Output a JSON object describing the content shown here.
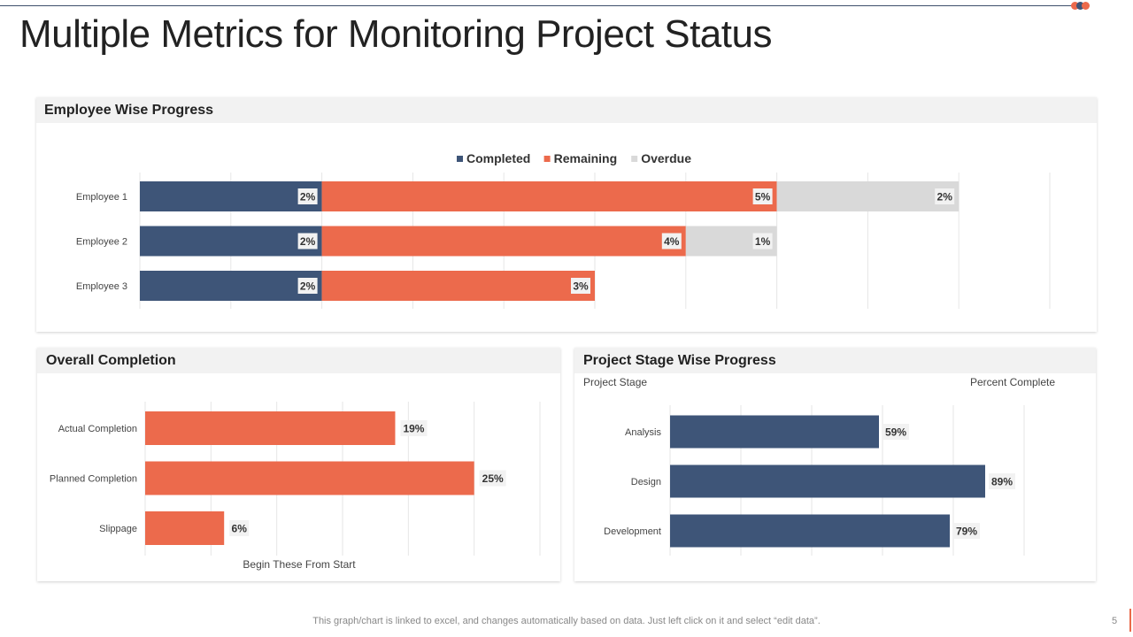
{
  "page": {
    "title": "Multiple Metrics for Monitoring Project Status",
    "footer": "This graph/chart is linked to excel,  and changes automatically based on data. Just left click on it and select “edit data”.",
    "page_number": "5"
  },
  "colors": {
    "navy": "#3e5578",
    "orange": "#ec6a4c",
    "gray": "#d9d9d9",
    "grid": "#e6e6e6"
  },
  "chart_data": [
    {
      "id": "employee",
      "type": "bar",
      "orientation": "horizontal",
      "stacked": true,
      "title": "Employee Wise Progress",
      "categories": [
        "Employee 1",
        "Employee 2",
        "Employee 3"
      ],
      "series": [
        {
          "name": "Completed",
          "values": [
            2,
            2,
            2
          ],
          "labels": [
            "2%",
            "2%",
            "2%"
          ]
        },
        {
          "name": "Remaining",
          "values": [
            5,
            4,
            3
          ],
          "labels": [
            "5%",
            "4%",
            "3%"
          ]
        },
        {
          "name": "Overdue",
          "values": [
            2,
            1,
            0
          ],
          "labels": [
            "2%",
            "1%",
            ""
          ]
        }
      ],
      "xlim": [
        0,
        10
      ],
      "legend": "top"
    },
    {
      "id": "overall",
      "type": "bar",
      "orientation": "horizontal",
      "title": "Overall Completion",
      "categories": [
        "Actual Completion",
        "Planned Completion",
        "Slippage"
      ],
      "values": [
        19,
        25,
        6
      ],
      "labels": [
        "19%",
        "25%",
        "6%"
      ],
      "xlim": [
        0,
        30
      ],
      "xlabel": "Begin These From Start"
    },
    {
      "id": "stage",
      "type": "bar",
      "orientation": "horizontal",
      "title": "Project Stage Wise Progress",
      "categories": [
        "Analysis",
        "Design",
        "Development"
      ],
      "values": [
        59,
        89,
        79
      ],
      "labels": [
        "59%",
        "89%",
        "79%"
      ],
      "xlim": [
        0,
        100
      ],
      "ylabel": "Project Stage",
      "xlabel": "Percent Complete"
    }
  ]
}
